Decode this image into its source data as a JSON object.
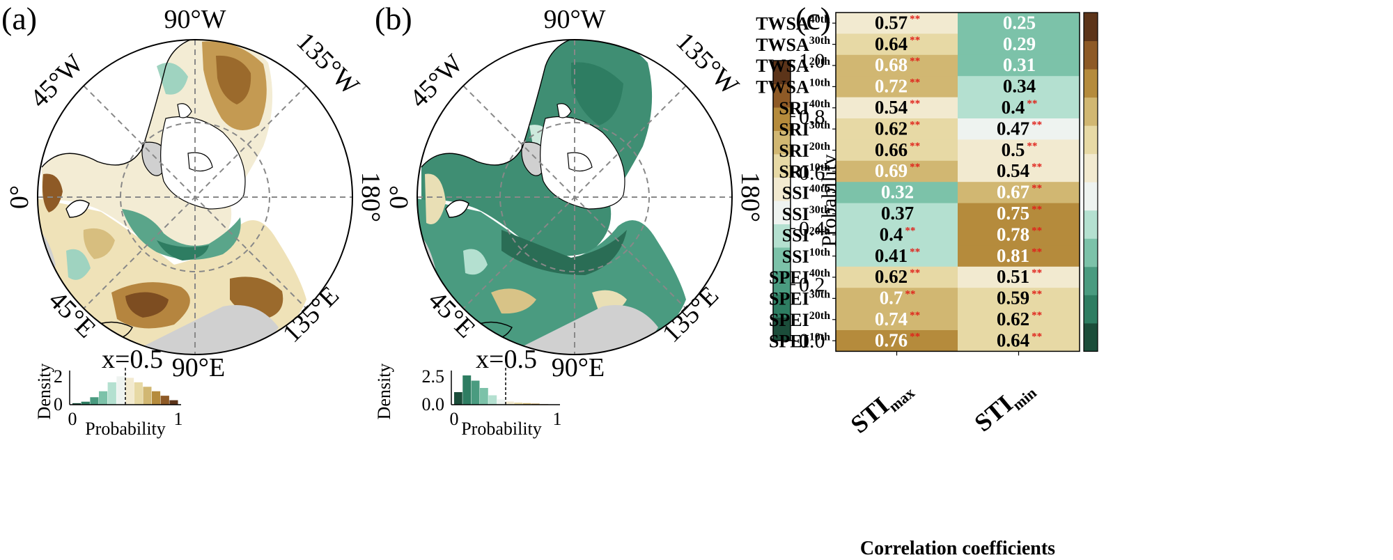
{
  "panels": [
    {
      "id": "a",
      "letter": "(a)",
      "lon_labels": {
        "top": "90°W",
        "left": "0°",
        "right": "180°",
        "bottom": "90°E",
        "upper_left": "45°W",
        "upper_right": "135°W",
        "lower_left": "45°E",
        "lower_right": "135°E"
      },
      "inset": {
        "xlabel": "Probability",
        "ylabel": "Density",
        "marker_label": "x=0.5",
        "yticks": [
          "0",
          "2"
        ],
        "xticks": [
          "0",
          "1"
        ]
      }
    },
    {
      "id": "b",
      "letter": "(b)",
      "lon_labels": {
        "top": "90°W",
        "left": "0°",
        "right": "180°",
        "bottom": "90°E",
        "upper_left": "45°W",
        "upper_right": "135°W",
        "lower_left": "45°E",
        "lower_right": "135°E"
      },
      "inset": {
        "xlabel": "Probability",
        "ylabel": "Density",
        "marker_label": "x=0.5",
        "yticks": [
          "0.0",
          "2.5"
        ],
        "xticks": [
          "0",
          "1"
        ]
      }
    }
  ],
  "colorbar": {
    "label": "Probability",
    "ticks": [
      "0.0",
      "0.2",
      "0.4",
      "0.6",
      "0.8",
      "1.0"
    ],
    "colors": [
      "#1b4d3a",
      "#2e7d62",
      "#4a9b80",
      "#7cc2a9",
      "#b4e0d0",
      "#eef3f0",
      "#f2ead0",
      "#e7d9a5",
      "#d1b772",
      "#b58b3c",
      "#8e5a26",
      "#5c3419"
    ]
  },
  "heatmap_panel": {
    "letter": "(c)",
    "xlabel": "Correlation coefficients",
    "col_labels": [
      {
        "base": "STI",
        "sub": "max"
      },
      {
        "base": "STI",
        "sub": "min"
      }
    ],
    "significance_mark": "**"
  },
  "chart_data": [
    {
      "type": "bar",
      "panel": "a",
      "title": "",
      "xlabel": "Probability",
      "ylabel": "Density",
      "xlim": [
        0,
        1
      ],
      "ylim": [
        0,
        2.1
      ],
      "bin_edges": [
        0,
        0.083,
        0.167,
        0.25,
        0.333,
        0.417,
        0.5,
        0.583,
        0.667,
        0.75,
        0.833,
        0.917,
        1.0
      ],
      "values": [
        0.1,
        0.2,
        0.5,
        0.9,
        1.5,
        1.9,
        1.8,
        1.5,
        1.2,
        0.9,
        0.6,
        0.3
      ],
      "vline": 0.5
    },
    {
      "type": "bar",
      "panel": "b",
      "title": "",
      "xlabel": "Probability",
      "ylabel": "Density",
      "xlim": [
        0,
        1
      ],
      "ylim": [
        0,
        3.0
      ],
      "bin_edges": [
        0,
        0.083,
        0.167,
        0.25,
        0.333,
        0.417,
        0.5,
        0.583,
        0.667,
        0.75,
        0.833,
        0.917,
        1.0
      ],
      "values": [
        1.2,
        2.8,
        2.3,
        1.6,
        0.9,
        0.5,
        0.3,
        0.2,
        0.15,
        0.1,
        0.05,
        0.02
      ],
      "vline": 0.5
    },
    {
      "type": "heatmap",
      "panel": "c",
      "title": "",
      "xlabel": "Correlation coefficients",
      "rows": [
        {
          "base": "TWSA",
          "sup": "40th",
          "values": [
            0.57,
            0.25
          ],
          "display": [
            "0.57",
            "0.25"
          ],
          "sig": [
            true,
            false
          ]
        },
        {
          "base": "TWSA",
          "sup": "30th",
          "values": [
            0.64,
            0.29
          ],
          "display": [
            "0.64",
            "0.29"
          ],
          "sig": [
            true,
            false
          ]
        },
        {
          "base": "TWSA",
          "sup": "20th",
          "values": [
            0.68,
            0.31
          ],
          "display": [
            "0.68",
            "0.31"
          ],
          "sig": [
            true,
            false
          ]
        },
        {
          "base": "TWSA",
          "sup": "10th",
          "values": [
            0.72,
            0.34
          ],
          "display": [
            "0.72",
            "0.34"
          ],
          "sig": [
            true,
            false
          ]
        },
        {
          "base": "SRI",
          "sup": "40th",
          "values": [
            0.54,
            0.4
          ],
          "display": [
            "0.54",
            "0.4"
          ],
          "sig": [
            true,
            true
          ]
        },
        {
          "base": "SRI",
          "sup": "30th",
          "values": [
            0.62,
            0.47
          ],
          "display": [
            "0.62",
            "0.47"
          ],
          "sig": [
            true,
            true
          ]
        },
        {
          "base": "SRI",
          "sup": "20th",
          "values": [
            0.66,
            0.5
          ],
          "display": [
            "0.66",
            "0.5"
          ],
          "sig": [
            true,
            true
          ]
        },
        {
          "base": "SRI",
          "sup": "10th",
          "values": [
            0.69,
            0.54
          ],
          "display": [
            "0.69",
            "0.54"
          ],
          "sig": [
            true,
            true
          ]
        },
        {
          "base": "SSI",
          "sup": "40th",
          "values": [
            0.32,
            0.67
          ],
          "display": [
            "0.32",
            "0.67"
          ],
          "sig": [
            false,
            true
          ]
        },
        {
          "base": "SSI",
          "sup": "30th",
          "values": [
            0.37,
            0.75
          ],
          "display": [
            "0.37",
            "0.75"
          ],
          "sig": [
            false,
            true
          ]
        },
        {
          "base": "SSI",
          "sup": "20th",
          "values": [
            0.4,
            0.78
          ],
          "display": [
            "0.4",
            "0.78"
          ],
          "sig": [
            true,
            true
          ]
        },
        {
          "base": "SSI",
          "sup": "10th",
          "values": [
            0.41,
            0.81
          ],
          "display": [
            "0.41",
            "0.81"
          ],
          "sig": [
            true,
            true
          ]
        },
        {
          "base": "SPEI",
          "sup": "40th",
          "values": [
            0.62,
            0.51
          ],
          "display": [
            "0.62",
            "0.51"
          ],
          "sig": [
            true,
            true
          ]
        },
        {
          "base": "SPEI",
          "sup": "30th",
          "values": [
            0.7,
            0.59
          ],
          "display": [
            "0.7",
            "0.59"
          ],
          "sig": [
            true,
            true
          ]
        },
        {
          "base": "SPEI",
          "sup": "20th",
          "values": [
            0.74,
            0.62
          ],
          "display": [
            "0.74",
            "0.62"
          ],
          "sig": [
            true,
            true
          ]
        },
        {
          "base": "SPEI",
          "sup": "10th",
          "values": [
            0.76,
            0.64
          ],
          "display": [
            "0.76",
            "0.64"
          ],
          "sig": [
            true,
            true
          ]
        }
      ]
    }
  ]
}
